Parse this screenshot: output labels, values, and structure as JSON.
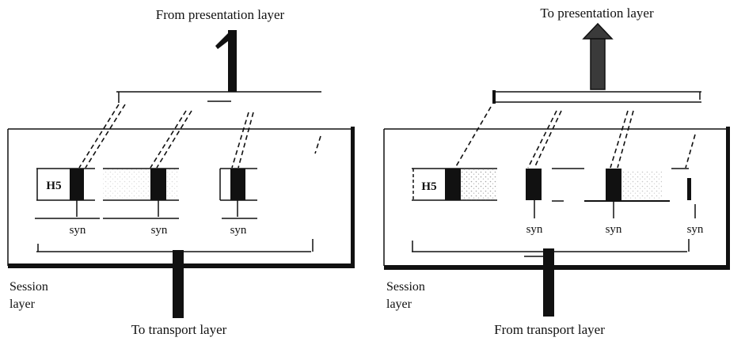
{
  "left_panel": {
    "top_label": "From presentation layer",
    "bottom_label": "To transport layer",
    "session_label_line1": "Session",
    "session_label_line2": "layer",
    "header_label": "H5",
    "syn_labels": [
      "syn",
      "syn",
      "syn"
    ],
    "flow": "down"
  },
  "right_panel": {
    "top_label": "To presentation layer",
    "bottom_label": "From transport layer",
    "session_label_line1": "Session",
    "session_label_line2": "layer",
    "header_label": "H5",
    "syn_labels": [
      "syn",
      "syn",
      "syn"
    ],
    "flow": "up"
  },
  "colors": {
    "ink": "#111111",
    "paper": "#ffffff",
    "stipple": "#9a9a9a"
  },
  "icons": {
    "arrow_up": "up-arrow-icon",
    "sync_mark": "sync-point-icon"
  }
}
